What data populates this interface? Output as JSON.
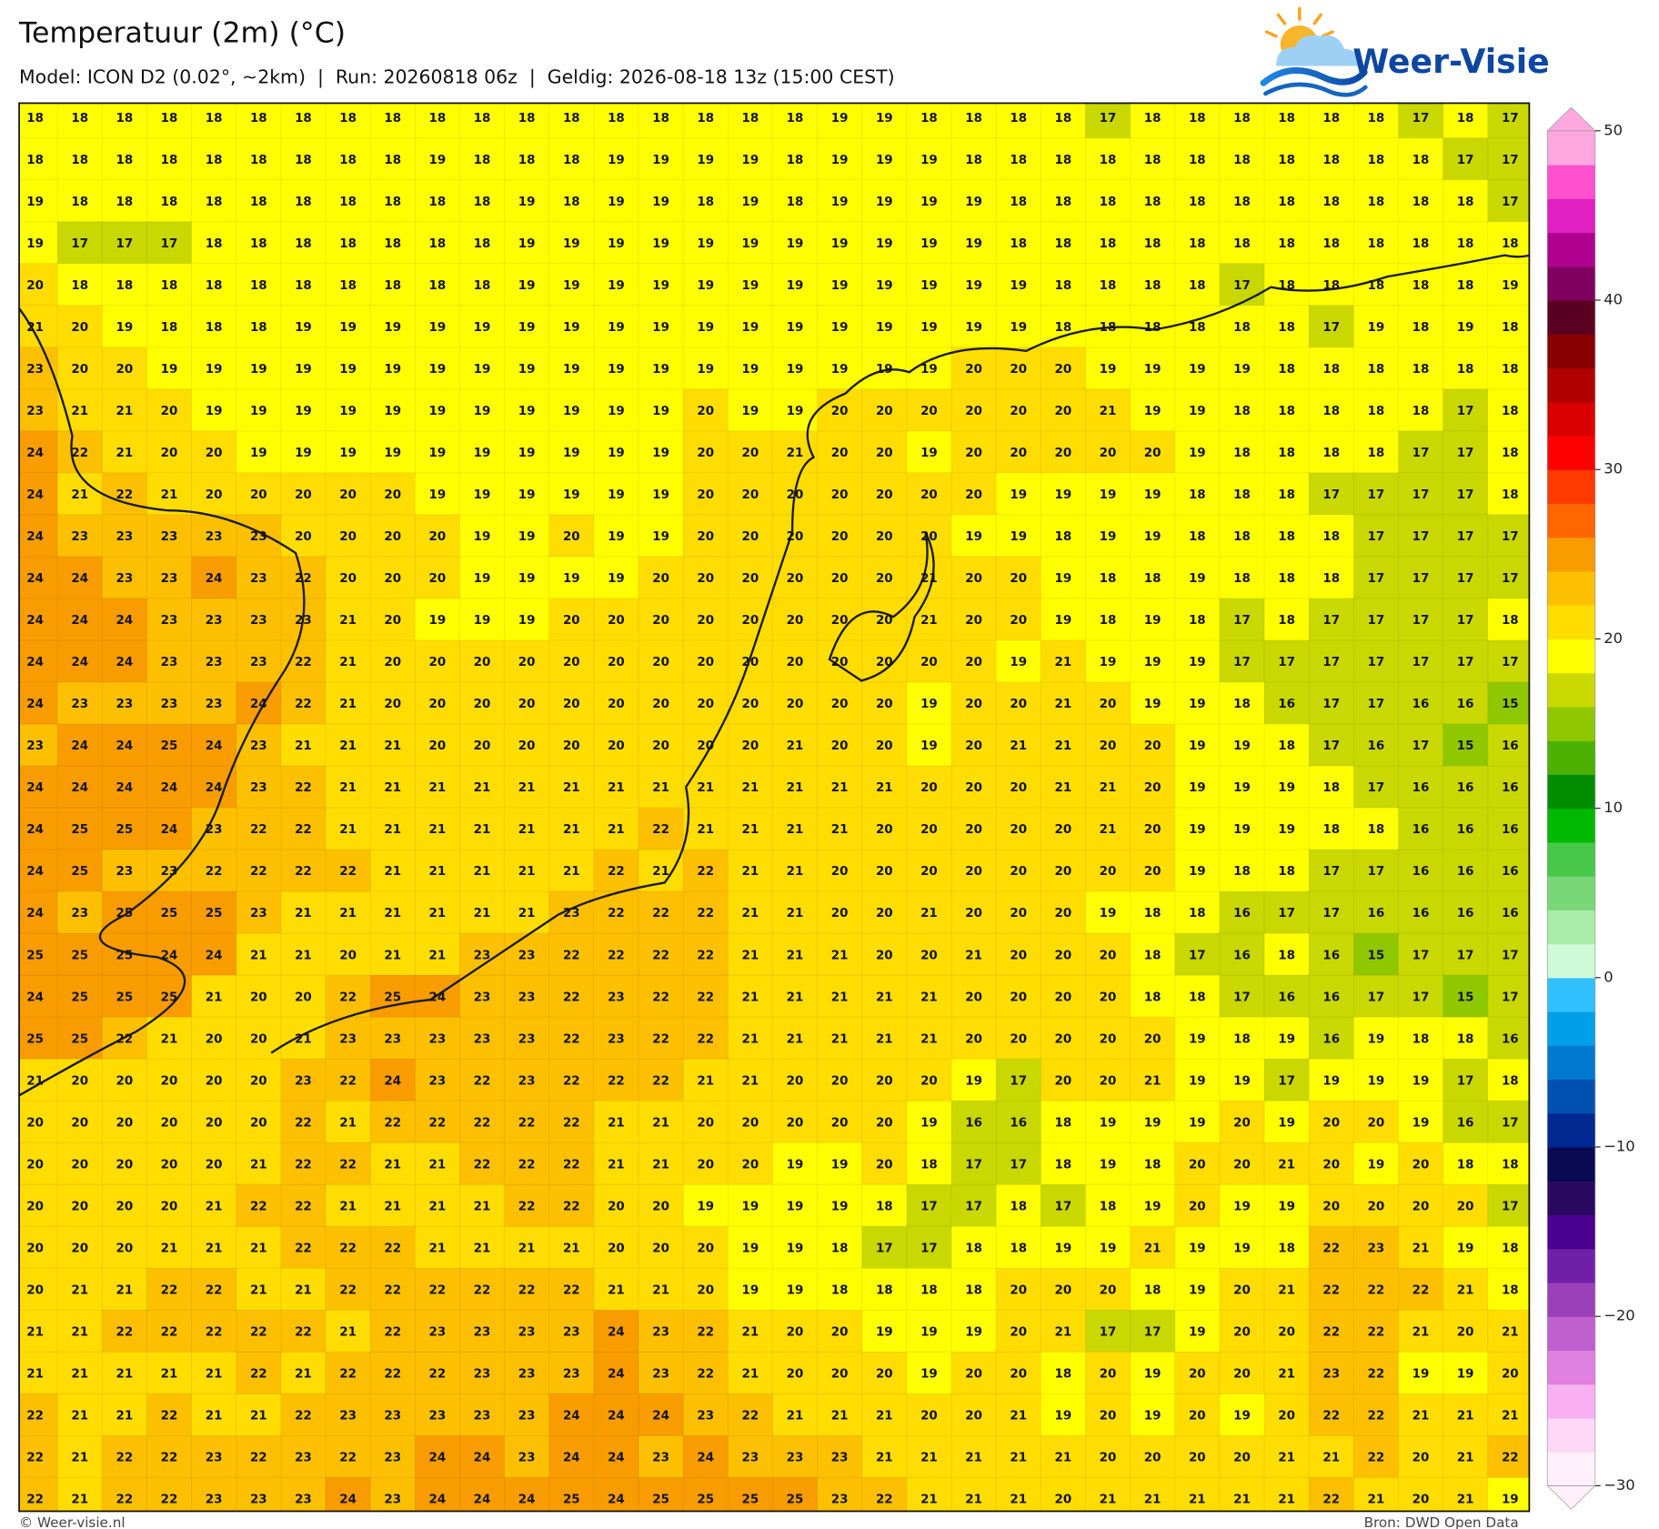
{
  "header": {
    "title": "Temperatuur (2m) (°C)",
    "subtitle": "Model: ICON D2 (0.02°, ~2km)  |  Run: 20260818 06z  |  Geldig: 2026-08-18 13z (15:00 CEST)"
  },
  "logo": "Weer-Visie",
  "map": {
    "grid": [
      [
        18,
        18,
        18,
        18,
        18,
        18,
        18,
        18,
        18,
        18,
        18,
        18,
        18,
        18,
        18,
        18,
        18,
        18,
        19,
        19,
        18,
        18,
        18,
        18,
        17,
        18,
        18,
        18,
        18,
        18,
        18,
        17,
        18,
        17
      ],
      [
        18,
        18,
        18,
        18,
        18,
        18,
        18,
        18,
        18,
        19,
        18,
        18,
        18,
        19,
        19,
        19,
        19,
        18,
        19,
        19,
        19,
        18,
        18,
        18,
        18,
        18,
        18,
        18,
        18,
        18,
        18,
        18,
        17,
        17
      ],
      [
        19,
        18,
        18,
        18,
        18,
        18,
        18,
        18,
        18,
        18,
        18,
        19,
        18,
        19,
        19,
        18,
        19,
        18,
        19,
        19,
        19,
        19,
        18,
        18,
        18,
        18,
        18,
        18,
        18,
        18,
        18,
        18,
        18,
        17
      ],
      [
        19,
        17,
        17,
        17,
        18,
        18,
        18,
        18,
        18,
        18,
        18,
        19,
        19,
        19,
        19,
        19,
        19,
        19,
        19,
        19,
        19,
        19,
        18,
        18,
        18,
        18,
        18,
        18,
        18,
        18,
        18,
        18,
        18,
        18
      ],
      [
        20,
        18,
        18,
        18,
        18,
        18,
        18,
        18,
        18,
        18,
        18,
        19,
        19,
        19,
        19,
        19,
        19,
        19,
        19,
        19,
        19,
        19,
        19,
        18,
        18,
        18,
        18,
        17,
        18,
        18,
        18,
        18,
        18,
        19
      ],
      [
        21,
        20,
        19,
        18,
        18,
        18,
        19,
        19,
        19,
        19,
        19,
        19,
        19,
        19,
        19,
        19,
        19,
        19,
        19,
        19,
        19,
        19,
        19,
        18,
        18,
        18,
        18,
        18,
        18,
        17,
        19,
        18,
        19,
        18
      ],
      [
        23,
        20,
        20,
        19,
        19,
        19,
        19,
        19,
        19,
        19,
        19,
        19,
        19,
        19,
        19,
        19,
        19,
        19,
        19,
        19,
        19,
        20,
        20,
        20,
        19,
        19,
        19,
        19,
        18,
        18,
        18,
        18,
        18,
        18
      ],
      [
        23,
        21,
        21,
        20,
        19,
        19,
        19,
        19,
        19,
        19,
        19,
        19,
        19,
        19,
        19,
        20,
        19,
        19,
        20,
        20,
        20,
        20,
        20,
        20,
        21,
        19,
        19,
        18,
        18,
        18,
        18,
        18,
        17,
        18
      ],
      [
        24,
        22,
        21,
        20,
        20,
        19,
        19,
        19,
        19,
        19,
        19,
        19,
        19,
        19,
        19,
        20,
        20,
        21,
        20,
        20,
        19,
        20,
        20,
        20,
        20,
        20,
        19,
        18,
        18,
        18,
        18,
        17,
        17,
        18
      ],
      [
        24,
        21,
        22,
        21,
        20,
        20,
        20,
        20,
        20,
        19,
        19,
        19,
        19,
        19,
        19,
        20,
        20,
        20,
        20,
        20,
        20,
        20,
        19,
        19,
        19,
        19,
        18,
        18,
        18,
        17,
        17,
        17,
        17,
        18
      ],
      [
        24,
        23,
        23,
        23,
        23,
        23,
        20,
        20,
        20,
        20,
        19,
        19,
        20,
        19,
        19,
        20,
        20,
        20,
        20,
        20,
        20,
        19,
        19,
        18,
        19,
        19,
        18,
        18,
        18,
        18,
        17,
        17,
        17,
        17
      ],
      [
        24,
        24,
        23,
        23,
        24,
        23,
        22,
        20,
        20,
        20,
        19,
        19,
        19,
        19,
        20,
        20,
        20,
        20,
        20,
        20,
        21,
        20,
        20,
        19,
        18,
        18,
        19,
        18,
        18,
        18,
        17,
        17,
        17,
        17
      ],
      [
        24,
        24,
        24,
        23,
        23,
        23,
        23,
        21,
        20,
        19,
        19,
        19,
        20,
        20,
        20,
        20,
        20,
        20,
        20,
        20,
        21,
        20,
        20,
        19,
        18,
        19,
        18,
        17,
        18,
        17,
        17,
        17,
        17,
        18
      ],
      [
        24,
        24,
        24,
        23,
        23,
        23,
        22,
        21,
        20,
        20,
        20,
        20,
        20,
        20,
        20,
        20,
        20,
        20,
        20,
        20,
        20,
        20,
        19,
        21,
        19,
        19,
        19,
        17,
        17,
        17,
        17,
        17,
        17,
        17
      ],
      [
        24,
        23,
        23,
        23,
        23,
        24,
        22,
        21,
        20,
        20,
        20,
        20,
        20,
        20,
        20,
        20,
        20,
        20,
        20,
        20,
        19,
        20,
        20,
        21,
        20,
        19,
        19,
        18,
        16,
        17,
        17,
        16,
        16,
        15
      ],
      [
        23,
        24,
        24,
        25,
        24,
        23,
        21,
        21,
        21,
        20,
        20,
        20,
        20,
        20,
        20,
        20,
        20,
        21,
        20,
        20,
        19,
        20,
        21,
        21,
        20,
        20,
        19,
        19,
        18,
        17,
        16,
        17,
        15,
        16
      ],
      [
        24,
        24,
        24,
        24,
        24,
        23,
        22,
        21,
        21,
        21,
        21,
        21,
        21,
        21,
        21,
        21,
        21,
        21,
        21,
        21,
        20,
        20,
        20,
        21,
        21,
        20,
        19,
        19,
        19,
        18,
        17,
        16,
        16,
        16
      ],
      [
        24,
        25,
        25,
        24,
        23,
        22,
        22,
        21,
        21,
        21,
        21,
        21,
        21,
        21,
        22,
        21,
        21,
        21,
        21,
        20,
        20,
        20,
        20,
        20,
        21,
        20,
        19,
        19,
        19,
        18,
        18,
        16,
        16,
        16
      ],
      [
        24,
        25,
        23,
        23,
        22,
        22,
        22,
        22,
        21,
        21,
        21,
        21,
        21,
        22,
        21,
        22,
        21,
        21,
        20,
        20,
        20,
        20,
        20,
        20,
        20,
        20,
        19,
        18,
        18,
        17,
        17,
        16,
        16,
        16
      ],
      [
        24,
        23,
        25,
        25,
        25,
        23,
        21,
        21,
        21,
        21,
        21,
        21,
        23,
        22,
        22,
        22,
        21,
        21,
        20,
        20,
        21,
        20,
        20,
        20,
        19,
        18,
        18,
        16,
        17,
        17,
        16,
        16,
        16,
        16
      ],
      [
        25,
        25,
        25,
        24,
        24,
        21,
        21,
        20,
        21,
        21,
        23,
        23,
        22,
        22,
        22,
        22,
        21,
        21,
        21,
        20,
        20,
        21,
        20,
        20,
        20,
        18,
        17,
        16,
        18,
        16,
        15,
        17,
        17,
        17
      ],
      [
        24,
        25,
        25,
        25,
        21,
        20,
        20,
        22,
        25,
        24,
        23,
        23,
        22,
        23,
        22,
        22,
        21,
        21,
        21,
        21,
        21,
        20,
        20,
        20,
        20,
        18,
        18,
        17,
        16,
        16,
        17,
        17,
        15,
        17
      ],
      [
        25,
        25,
        22,
        21,
        20,
        20,
        21,
        23,
        23,
        23,
        23,
        23,
        22,
        23,
        22,
        22,
        21,
        21,
        21,
        21,
        21,
        20,
        20,
        20,
        20,
        20,
        19,
        18,
        19,
        16,
        19,
        18,
        18,
        16
      ],
      [
        21,
        20,
        20,
        20,
        20,
        20,
        23,
        22,
        24,
        23,
        22,
        23,
        22,
        22,
        22,
        21,
        21,
        20,
        20,
        20,
        20,
        19,
        17,
        20,
        20,
        21,
        19,
        19,
        17,
        19,
        19,
        19,
        17,
        18
      ],
      [
        20,
        20,
        20,
        20,
        20,
        20,
        22,
        21,
        22,
        22,
        22,
        22,
        22,
        21,
        21,
        20,
        20,
        20,
        20,
        20,
        19,
        16,
        16,
        18,
        19,
        19,
        19,
        20,
        19,
        20,
        20,
        19,
        16,
        17
      ],
      [
        20,
        20,
        20,
        20,
        20,
        21,
        22,
        22,
        21,
        21,
        22,
        22,
        22,
        21,
        21,
        20,
        20,
        19,
        19,
        20,
        18,
        17,
        17,
        18,
        19,
        18,
        20,
        20,
        21,
        20,
        19,
        20,
        18,
        18
      ],
      [
        20,
        20,
        20,
        20,
        21,
        22,
        22,
        21,
        21,
        21,
        21,
        22,
        22,
        20,
        20,
        19,
        19,
        19,
        19,
        18,
        17,
        17,
        18,
        17,
        18,
        19,
        20,
        19,
        19,
        20,
        20,
        20,
        20,
        17
      ],
      [
        20,
        20,
        20,
        21,
        21,
        21,
        22,
        22,
        22,
        21,
        21,
        21,
        21,
        20,
        20,
        20,
        19,
        19,
        18,
        17,
        17,
        18,
        18,
        19,
        19,
        21,
        19,
        19,
        18,
        22,
        23,
        21,
        19,
        18
      ],
      [
        20,
        21,
        21,
        22,
        22,
        21,
        21,
        22,
        22,
        22,
        22,
        22,
        22,
        21,
        21,
        20,
        19,
        19,
        18,
        18,
        18,
        18,
        20,
        20,
        20,
        18,
        19,
        20,
        21,
        22,
        22,
        22,
        21,
        18
      ],
      [
        21,
        21,
        22,
        22,
        22,
        22,
        22,
        21,
        22,
        23,
        23,
        23,
        23,
        24,
        23,
        22,
        21,
        20,
        20,
        19,
        19,
        19,
        20,
        21,
        17,
        17,
        19,
        20,
        20,
        22,
        22,
        21,
        20,
        21
      ],
      [
        21,
        21,
        21,
        21,
        21,
        22,
        21,
        22,
        22,
        22,
        23,
        23,
        23,
        24,
        23,
        22,
        21,
        20,
        20,
        20,
        19,
        20,
        20,
        18,
        20,
        19,
        20,
        20,
        21,
        23,
        22,
        19,
        19,
        20
      ],
      [
        22,
        21,
        21,
        22,
        21,
        21,
        22,
        23,
        23,
        23,
        23,
        23,
        24,
        24,
        24,
        23,
        22,
        21,
        21,
        21,
        20,
        20,
        21,
        19,
        20,
        19,
        20,
        19,
        20,
        22,
        22,
        21,
        21,
        21
      ],
      [
        22,
        21,
        22,
        22,
        23,
        22,
        23,
        22,
        23,
        24,
        24,
        23,
        24,
        24,
        23,
        24,
        23,
        23,
        23,
        21,
        21,
        21,
        21,
        21,
        20,
        20,
        20,
        20,
        21,
        21,
        22,
        20,
        21,
        22
      ],
      [
        22,
        21,
        22,
        22,
        23,
        23,
        23,
        24,
        23,
        24,
        24,
        24,
        25,
        24,
        25,
        25,
        25,
        25,
        23,
        22,
        21,
        21,
        21,
        20,
        21,
        21,
        21,
        21,
        21,
        22,
        21,
        20,
        21,
        19
      ]
    ]
  },
  "colorbar": {
    "lim": [
      -30,
      50
    ],
    "colors": [
      "#fff0fc",
      "#ffd8f8",
      "#f8b0f0",
      "#e080e0",
      "#c060d0",
      "#9a40b8",
      "#7020a8",
      "#4a0090",
      "#2a0a60",
      "#0a0a50",
      "#002890",
      "#0050b0",
      "#0078d0",
      "#00a0e8",
      "#30c0ff",
      "#cffad8",
      "#a8eca8",
      "#78d878",
      "#48c848",
      "#00b800",
      "#008c00",
      "#4cb000",
      "#90c800",
      "#c8d800",
      "#ffff00",
      "#ffdd00",
      "#fcc000",
      "#f89c00",
      "#ff6600",
      "#ff3a00",
      "#ff0000",
      "#d80000",
      "#b00000",
      "#880000",
      "#5a0020",
      "#800060",
      "#b00090",
      "#e020c0",
      "#ff50d0",
      "#ffa8e0"
    ],
    "ticks": [
      50,
      40,
      30,
      20,
      10,
      0,
      {
        "value": -10,
        "label": "−10"
      },
      {
        "value": -20,
        "label": "−20"
      },
      {
        "value": -30,
        "label": "−30"
      }
    ]
  },
  "footer": {
    "left": "© Weer-visie.nl",
    "right": "Bron: DWD Open Data"
  }
}
